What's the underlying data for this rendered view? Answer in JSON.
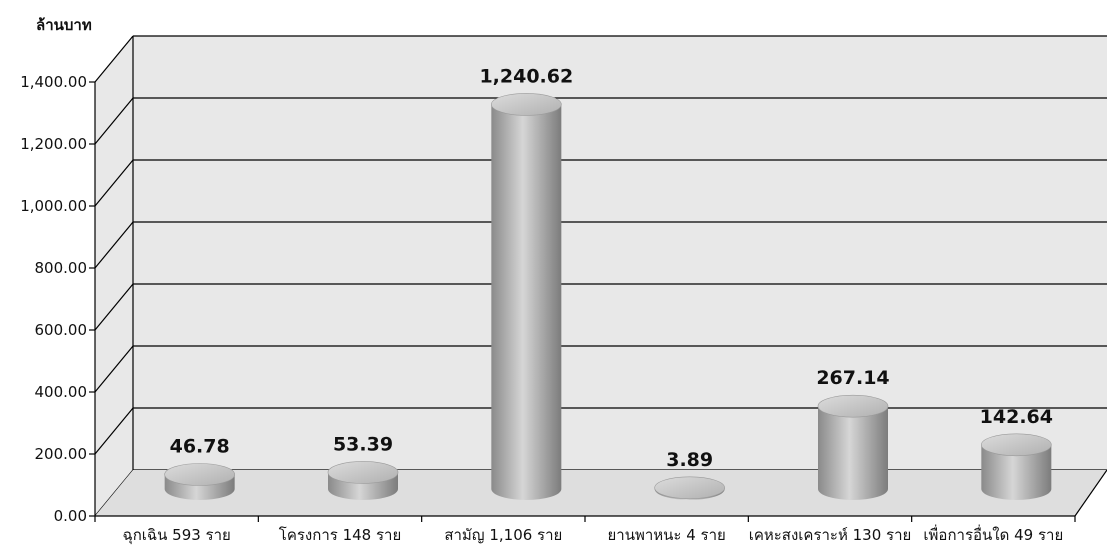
{
  "chart_data": {
    "type": "bar",
    "ylabel": "ล้านบาท",
    "categories": [
      "ฉุกเฉิน 593 ราย",
      "โครงการ 148 ราย",
      "สามัญ 1,106 ราย",
      "ยานพาหนะ 4 ราย",
      "เคหะสงเคราะห์ 130 ราย",
      "เพื่อการอื่นใด 49 ราย"
    ],
    "values": [
      46.78,
      53.39,
      1240.62,
      3.89,
      267.14,
      142.64
    ],
    "value_labels": [
      "46.78",
      "53.39",
      "1,240.62",
      "3.89",
      "267.14",
      "142.64"
    ],
    "y_ticks": [
      "0.00",
      "200.00",
      "400.00",
      "600.00",
      "800.00",
      "1,000.00",
      "1,200.00",
      "1,400.00"
    ],
    "ylim": [
      0,
      1400
    ],
    "grid": true,
    "style": "3d-cylinder",
    "colors": {
      "bar_dark": "#8c8c8c",
      "bar_light": "#d4d4d4",
      "bar_top": "#c8c8c8",
      "wall": "#e8e8e8",
      "floor": "#dedede",
      "grid": "#000000"
    }
  }
}
